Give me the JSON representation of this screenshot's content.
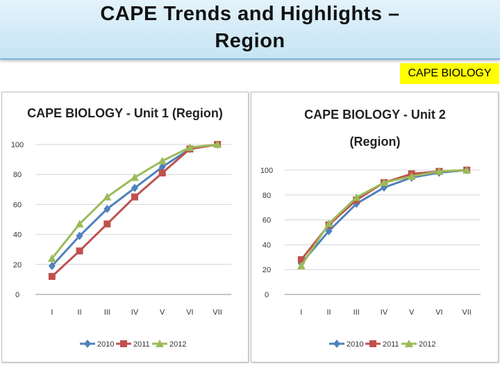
{
  "header": {
    "title_line1": "CAPE Trends and Highlights –",
    "title_line2": "Region"
  },
  "badge": "CAPE BIOLOGY",
  "colors": {
    "title_bg": "#cfe8f6",
    "badge_bg": "#ffff00",
    "series_2010": "#4f81bd",
    "series_2011": "#c0504d",
    "series_2012": "#9bbb59"
  },
  "chart_data": [
    {
      "type": "line",
      "title": "CAPE BIOLOGY - Unit 1 (Region)",
      "title_lines": [
        "CAPE BIOLOGY - Unit 1 (Region)"
      ],
      "categories": [
        "I",
        "II",
        "III",
        "IV",
        "V",
        "VI",
        "VII"
      ],
      "ylim": [
        0,
        100
      ],
      "yticks": [
        0,
        20,
        40,
        60,
        80,
        100
      ],
      "grid": true,
      "legend": "bottom",
      "series": [
        {
          "name": "2010",
          "color": "#4f81bd",
          "marker": "diamond",
          "values": [
            19,
            39,
            57,
            71,
            85,
            97,
            100
          ]
        },
        {
          "name": "2011",
          "color": "#c0504d",
          "marker": "square",
          "values": [
            12,
            29,
            47,
            65,
            81,
            97,
            100
          ]
        },
        {
          "name": "2012",
          "color": "#9bbb59",
          "marker": "triangle",
          "values": [
            24,
            47,
            65,
            78,
            89,
            98,
            100
          ]
        }
      ]
    },
    {
      "type": "line",
      "title": "CAPE BIOLOGY - Unit 2 (Region)",
      "title_lines": [
        "CAPE BIOLOGY - Unit 2",
        "(Region)"
      ],
      "categories": [
        "I",
        "II",
        "III",
        "IV",
        "V",
        "VI",
        "VII"
      ],
      "ylim": [
        0,
        100
      ],
      "yticks": [
        0,
        20,
        40,
        60,
        80,
        100
      ],
      "grid": true,
      "legend": "bottom",
      "series": [
        {
          "name": "2010",
          "color": "#4f81bd",
          "marker": "diamond",
          "values": [
            25,
            51,
            73,
            86,
            94,
            98,
            100
          ]
        },
        {
          "name": "2011",
          "color": "#c0504d",
          "marker": "square",
          "values": [
            28,
            56,
            76,
            90,
            97,
            99,
            100
          ]
        },
        {
          "name": "2012",
          "color": "#9bbb59",
          "marker": "triangle",
          "values": [
            23,
            57,
            78,
            90,
            95,
            99,
            100
          ]
        }
      ]
    }
  ]
}
